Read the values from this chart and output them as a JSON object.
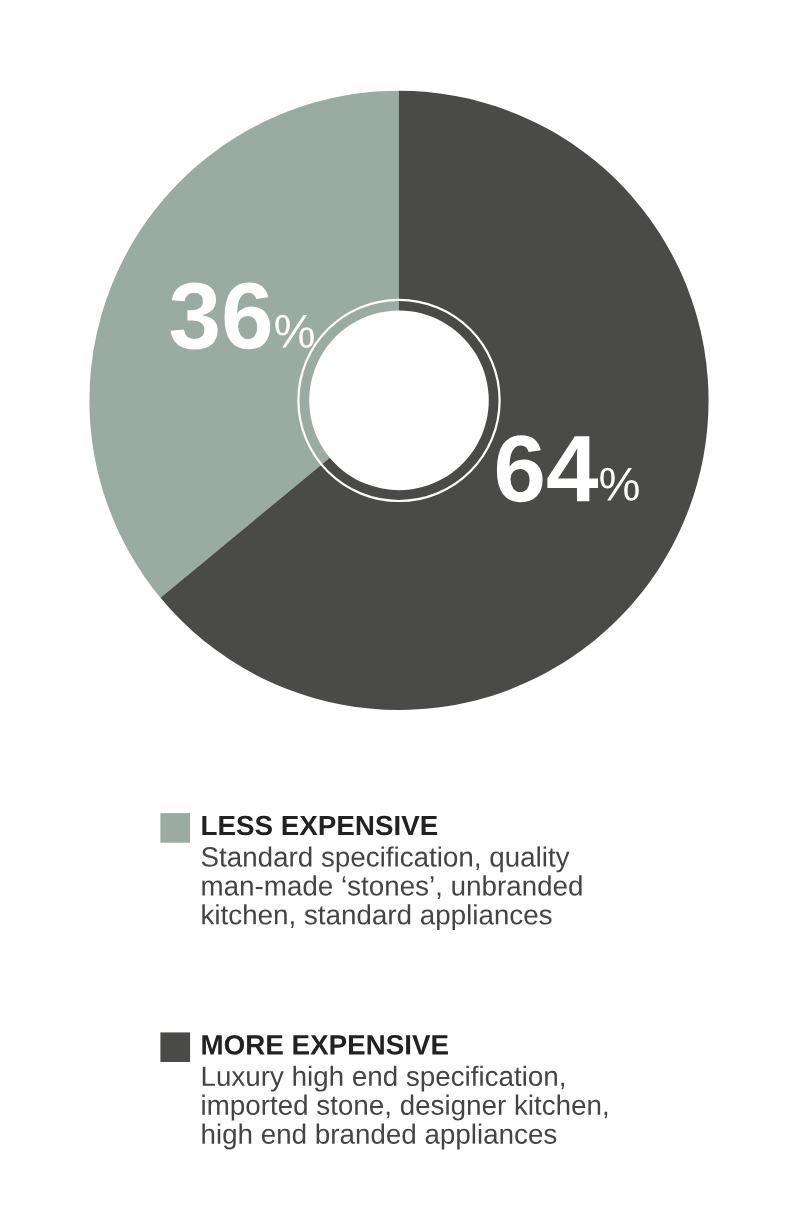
{
  "chart_data": {
    "type": "donut",
    "categories": [
      "LESS EXPENSIVE",
      "MORE EXPENSIVE"
    ],
    "values": [
      36,
      64
    ],
    "colors": [
      "#9aaba3",
      "#4a4a48"
    ],
    "value_labels": [
      "36%",
      "64%"
    ],
    "legend": "bottom",
    "annotations": [
      "Standard specification, quality\nman-made ‘stones’, unbranded\nkitchen, standard appliances",
      "Luxury high end specification,\nimported stone, designer kitchen,\nhigh end branded appliances"
    ]
  }
}
